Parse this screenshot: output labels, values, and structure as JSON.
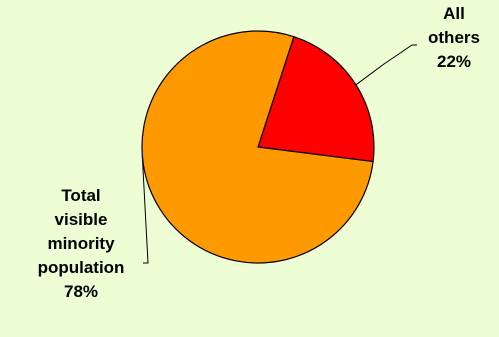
{
  "chart_data": {
    "type": "pie",
    "slices": [
      {
        "label_lines": [
          "All",
          "others"
        ],
        "percent_label": "22%",
        "value": 22,
        "color": "#ff0000"
      },
      {
        "label_lines": [
          "Total",
          "visible",
          "minority",
          "population"
        ],
        "percent_label": "78%",
        "value": 78,
        "color": "#ff9900"
      }
    ],
    "background_color": "#edfdd4",
    "outline_color": "#000000"
  }
}
